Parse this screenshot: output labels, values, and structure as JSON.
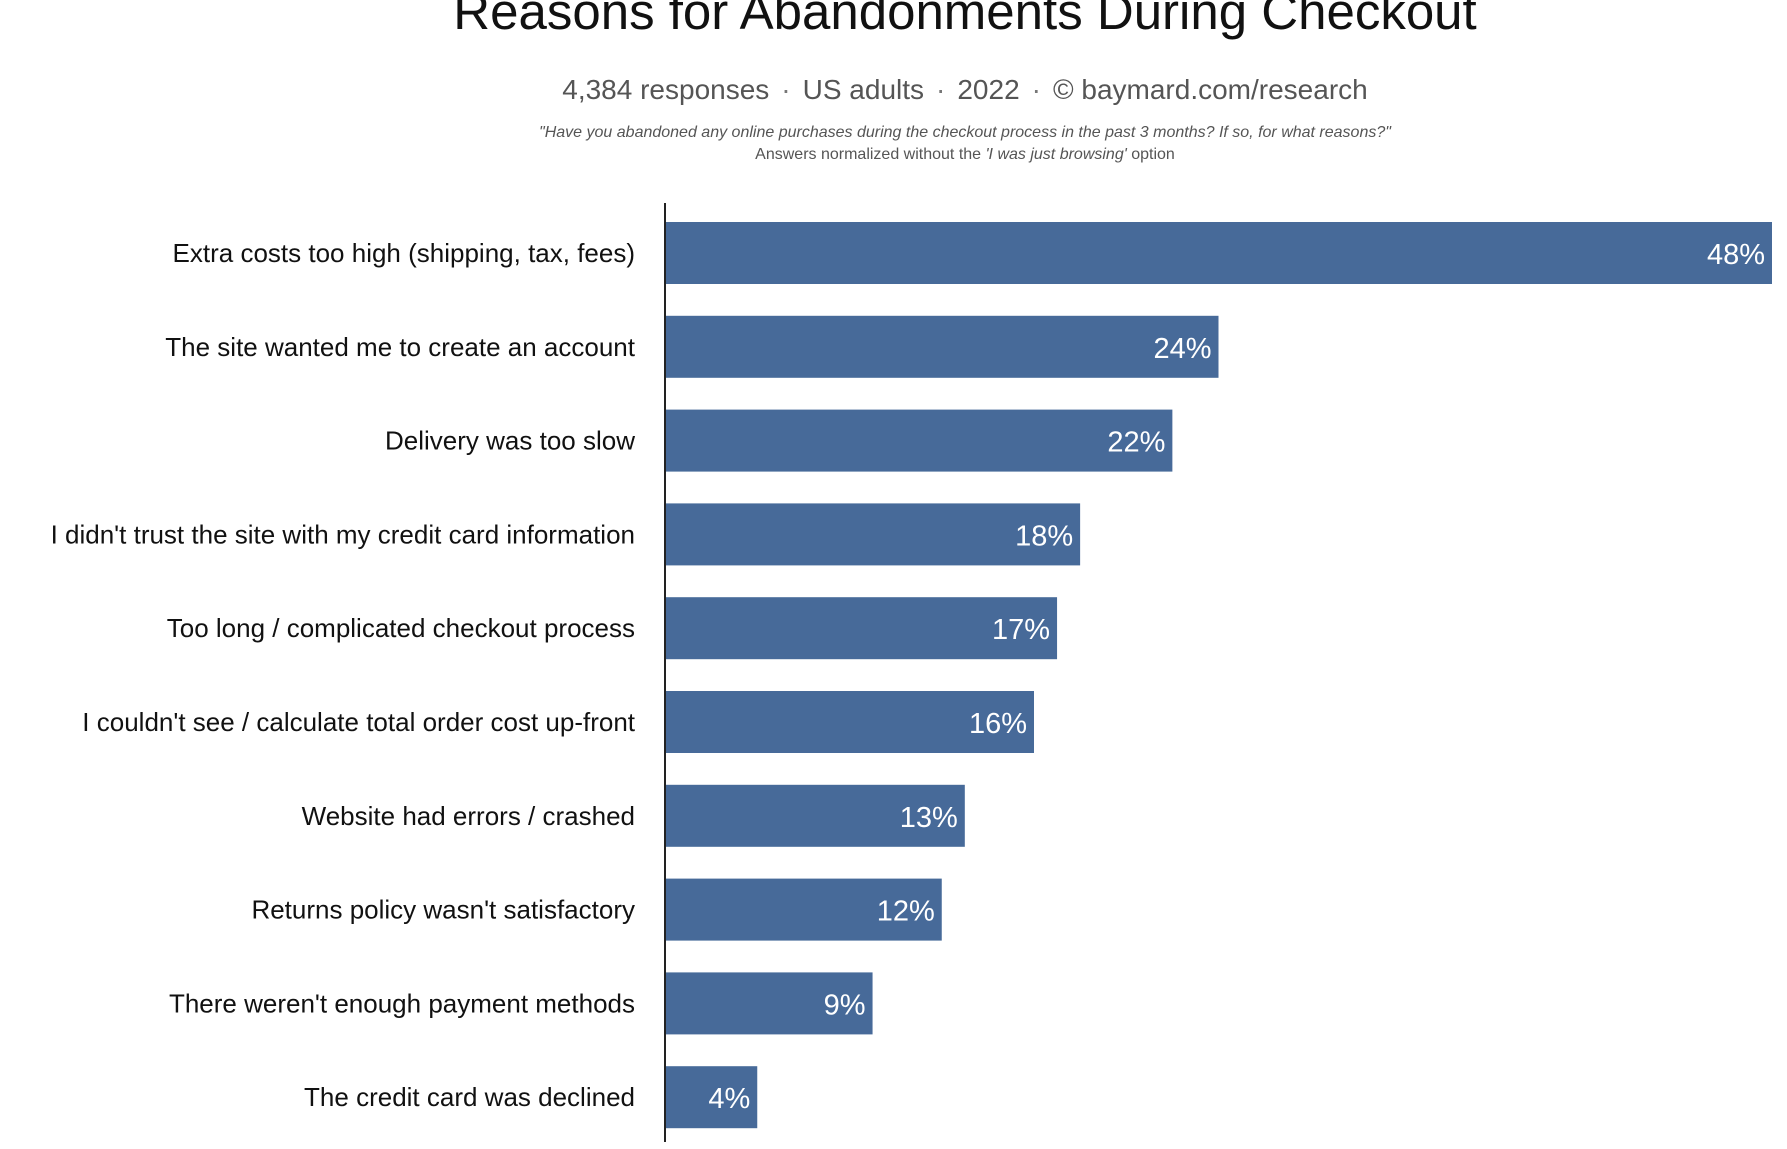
{
  "title": "Reasons for Abandonments During Checkout",
  "subtitle": {
    "responses": "4,384 responses",
    "population": "US adults",
    "year": "2022",
    "source": "© baymard.com/research",
    "separator": "·"
  },
  "question": "\"Have you abandoned any online purchases during the checkout process in the past 3 months? If so, for what reasons?\"",
  "note": {
    "prefix": "Answers normalized without the ",
    "option": "'I was just browsing'",
    "suffix": " option"
  },
  "colors": {
    "bar": "#476a99",
    "axis": "#222222",
    "value_text": "#ffffff"
  },
  "chart_data": {
    "type": "bar",
    "orientation": "horizontal",
    "categories": [
      "Extra costs too high (shipping, tax, fees)",
      "The site wanted me to create an account",
      "Delivery was too slow",
      "I didn't trust the site with my credit card information",
      "Too long / complicated checkout process",
      "I couldn't see / calculate total order cost up-front",
      "Website had errors / crashed",
      "Returns policy wasn't satisfactory",
      "There weren't enough payment methods",
      "The credit card was declined"
    ],
    "values": [
      48,
      24,
      22,
      18,
      17,
      16,
      13,
      12,
      9,
      4
    ],
    "value_labels": [
      "48%",
      "24%",
      "22%",
      "18%",
      "17%",
      "16%",
      "13%",
      "12%",
      "9%",
      "4%"
    ],
    "unit": "%",
    "title": "Reasons for Abandonments During Checkout",
    "xlabel": "",
    "ylabel": "",
    "xlim": [
      0,
      48
    ],
    "grid": false,
    "legend": "none"
  }
}
